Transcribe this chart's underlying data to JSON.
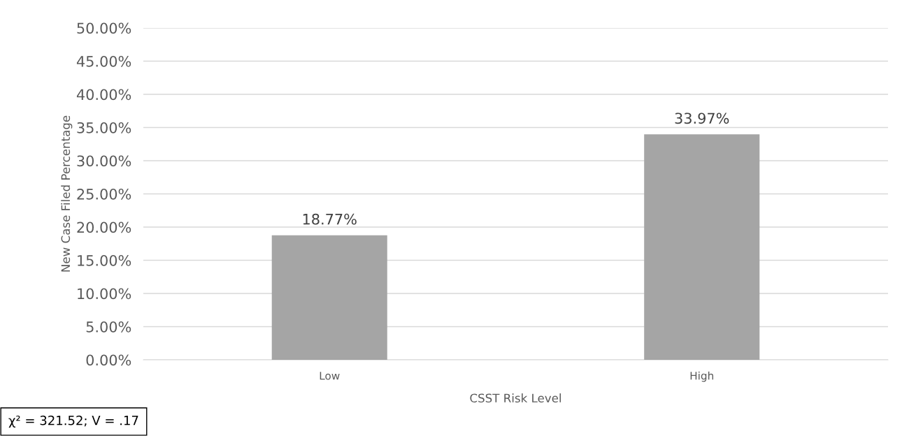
{
  "chart_data": {
    "type": "bar",
    "xlabel": "CSST Risk Level",
    "ylabel": "New Case Filed Percentage",
    "categories": [
      "Low",
      "High"
    ],
    "series": [
      {
        "color": "#a5a5a5",
        "values": [
          18.77,
          33.97
        ],
        "value_labels": [
          "18.77%",
          "33.97%"
        ]
      }
    ],
    "ylim": [
      0,
      50
    ],
    "yticks": [
      {
        "value": 0,
        "label": "0.00%"
      },
      {
        "value": 5,
        "label": "5.00%"
      },
      {
        "value": 10,
        "label": "10.00%"
      },
      {
        "value": 15,
        "label": "15.00%"
      },
      {
        "value": 20,
        "label": "20.00%"
      },
      {
        "value": 25,
        "label": "25.00%"
      },
      {
        "value": 30,
        "label": "30.00%"
      },
      {
        "value": 35,
        "label": "35.00%"
      },
      {
        "value": 40,
        "label": "40.00%"
      },
      {
        "value": 45,
        "label": "45.00%"
      },
      {
        "value": 50,
        "label": "50.00%"
      }
    ],
    "grid": "y",
    "annotations": [
      "χ² = 321.52; V = .17"
    ]
  }
}
